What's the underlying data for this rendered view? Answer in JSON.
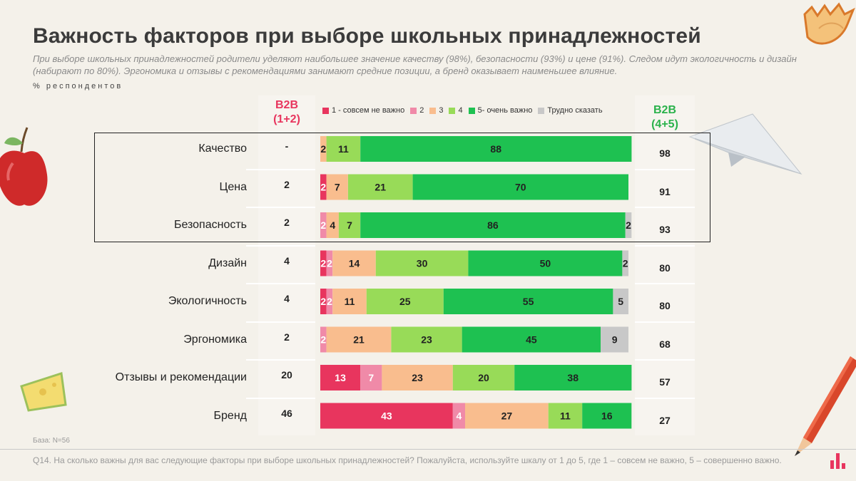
{
  "title": "Важность факторов при выборе школьных принадлежностей",
  "subtitle": "При выборе школьных принадлежностей родители уделяют наибольшее значение качеству (98%), безопасности (93%) и цене (91%). Следом идут экологичность и  дизайн  (набирают по  80%). Эргономика и отзывы с рекомендациями занимают средние позиции, а бренд оказывает наименьшее влияние.",
  "unit_label": "% респондентов",
  "b2b": {
    "label": "B2B",
    "sub": "(1+2)",
    "color": "#e8355e"
  },
  "t2b": {
    "label": "B2B",
    "sub": "(4+5)",
    "color": "#2bb24c"
  },
  "base_note": "База: N=56",
  "question": "Q14. На сколько важны для вас следующие факторы при выборе школьных принадлежностей?  Пожалуйста, используйте шкалу от 1 до 5, где 1 – совсем не важно, 5 – совершенно важно.",
  "colors": {
    "s1": "#e8355e",
    "s2": "#f08aa8",
    "s3": "#f9bd8e",
    "s4": "#98db58",
    "s5": "#1ec151",
    "dk": "#c8c8c8"
  },
  "chart_data": {
    "type": "bar",
    "orientation": "horizontal",
    "stacked": true,
    "categories": [
      "Качество",
      "Цена",
      "Безопасность",
      "Дизайн",
      "Экологичность",
      "Эргономика",
      "Отзывы и рекомендации",
      "Бренд"
    ],
    "series": [
      {
        "name": "1 - совсем не важно",
        "values": [
          0,
          2,
          0,
          2,
          2,
          0,
          13,
          43
        ]
      },
      {
        "name": "2",
        "values": [
          0,
          0,
          2,
          2,
          2,
          2,
          7,
          4
        ]
      },
      {
        "name": "3",
        "values": [
          2,
          7,
          4,
          14,
          11,
          21,
          23,
          27
        ]
      },
      {
        "name": "4",
        "values": [
          11,
          21,
          7,
          30,
          25,
          23,
          20,
          11
        ]
      },
      {
        "name": "5- очень важно",
        "values": [
          88,
          70,
          86,
          50,
          55,
          45,
          38,
          16
        ]
      },
      {
        "name": "Трудно сказать",
        "values": [
          0,
          0,
          2,
          2,
          5,
          9,
          0,
          0
        ]
      }
    ],
    "b2b_values": [
      "-",
      "2",
      "2",
      "4",
      "4",
      "2",
      "20",
      "46"
    ],
    "t2b_values": [
      "98",
      "91",
      "93",
      "80",
      "80",
      "68",
      "57",
      "27"
    ],
    "xlim": [
      0,
      100
    ],
    "legend_position": "top"
  }
}
